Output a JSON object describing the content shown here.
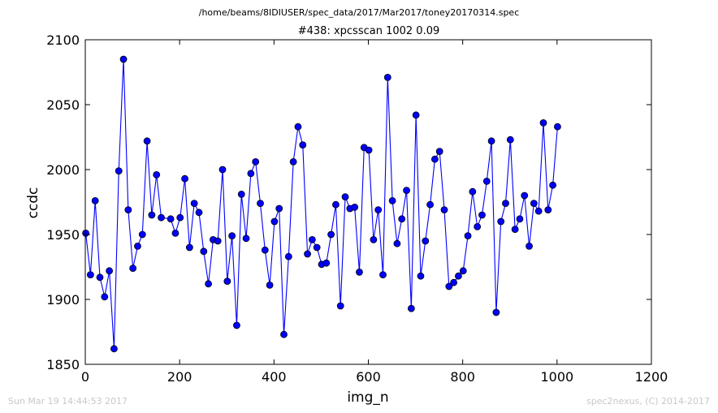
{
  "file_path": "/home/beams/8IDIUSER/spec_data/2017/Mar2017/toney20170314.spec",
  "footer_left": "Sun Mar 19 14:44:53 2017",
  "footer_right": "spec2nexus, (C) 2014-2017",
  "colors": {
    "series": "#0000ff",
    "marker_fill": "#0000ff"
  },
  "chart_data": {
    "type": "line",
    "title": "#438: xpcsscan 1002 0.09",
    "xlabel": "img_n",
    "ylabel": "ccdc",
    "xlim": [
      0,
      1200
    ],
    "ylim": [
      1850,
      2100
    ],
    "xticks": [
      0,
      200,
      400,
      600,
      800,
      1000,
      1200
    ],
    "yticks": [
      1850,
      1900,
      1950,
      2000,
      2050,
      2100
    ],
    "grid": false,
    "series": [
      {
        "x": [
          1,
          11,
          21,
          31,
          41,
          51,
          61,
          71,
          81,
          91,
          101,
          111,
          121,
          131,
          141,
          151,
          161,
          181,
          191,
          201,
          211,
          221,
          231,
          241,
          251,
          261,
          271,
          281,
          291,
          301,
          311,
          321,
          331,
          341,
          351,
          361,
          371,
          381,
          391,
          401,
          411,
          421,
          431,
          441,
          451,
          461,
          471,
          481,
          491,
          501,
          511,
          521,
          531,
          541,
          551,
          561,
          571,
          581,
          591,
          601,
          611,
          621,
          631,
          641,
          651,
          661,
          671,
          681,
          691,
          701,
          711,
          721,
          731,
          741,
          751,
          761,
          771,
          781,
          791,
          801,
          811,
          821,
          831,
          841,
          851,
          861,
          871,
          881,
          891,
          901,
          911,
          921,
          931,
          941,
          951,
          961,
          971,
          981,
          991,
          1001
        ],
        "y": [
          1951,
          1919,
          1976,
          1917,
          1902,
          1922,
          1862,
          1999,
          2085,
          1969,
          1924,
          1941,
          1950,
          2022,
          1965,
          1996,
          1963,
          1962,
          1951,
          1963,
          1993,
          1940,
          1974,
          1967,
          1937,
          1912,
          1946,
          1945,
          2000,
          1914,
          1949,
          1880,
          1981,
          1947,
          1997,
          2006,
          1974,
          1938,
          1911,
          1960,
          1970,
          1873,
          1933,
          2006,
          2033,
          2019,
          1935,
          1946,
          1940,
          1927,
          1928,
          1950,
          1973,
          1895,
          1979,
          1970,
          1971,
          1921,
          2017,
          2015,
          1946,
          1969,
          1919,
          2071,
          1976,
          1943,
          1962,
          1984,
          1893,
          2042,
          1918,
          1945,
          1973,
          2008,
          2014,
          1969,
          1910,
          1913,
          1918,
          1922,
          1949,
          1983,
          1956,
          1965,
          1991,
          2022,
          1890,
          1960,
          1974,
          2023,
          1954,
          1962,
          1980,
          1941,
          1974,
          1968,
          2036,
          1969,
          1988,
          2033
        ]
      }
    ]
  }
}
